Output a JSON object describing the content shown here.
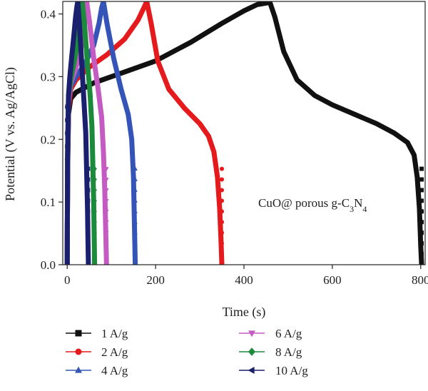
{
  "chart_data": {
    "type": "line",
    "xlabel": "Time (s)",
    "ylabel": "Potential (V vs. Ag/AgCl)",
    "xlim": [
      -10,
      810
    ],
    "ylim": [
      0,
      0.42
    ],
    "xticks": [
      0,
      200,
      400,
      600,
      800
    ],
    "yticks": [
      0.0,
      0.1,
      0.2,
      0.3,
      0.4
    ],
    "xtick_labels": [
      "0",
      "200",
      "400",
      "600",
      "800"
    ],
    "ytick_labels": [
      "0.0",
      "0.1",
      "0.2",
      "0.3",
      "0.4"
    ],
    "annotation": {
      "prefix": "CuO@ porous g-C",
      "sub1": "3",
      "mid": "N",
      "sub2": "4"
    },
    "legend_position": "bottom",
    "series": [
      {
        "name": "1 A/g",
        "color": "#111111",
        "marker": "square",
        "x": [
          0,
          1,
          3,
          8,
          20,
          60,
          120,
          200,
          280,
          350,
          400,
          430,
          455,
          458,
          470,
          490,
          520,
          560,
          600,
          650,
          700,
          740,
          770,
          785,
          792,
          797,
          800,
          802
        ],
        "y": [
          0.0,
          0.15,
          0.24,
          0.265,
          0.275,
          0.29,
          0.305,
          0.325,
          0.355,
          0.385,
          0.405,
          0.415,
          0.418,
          0.42,
          0.395,
          0.34,
          0.295,
          0.27,
          0.255,
          0.24,
          0.225,
          0.21,
          0.195,
          0.175,
          0.14,
          0.09,
          0.03,
          0.0
        ]
      },
      {
        "name": "2 A/g",
        "color": "#e41a1c",
        "marker": "circle",
        "x": [
          0,
          1,
          3,
          8,
          20,
          50,
          90,
          130,
          160,
          175,
          180,
          190,
          205,
          230,
          265,
          300,
          320,
          332,
          340,
          345,
          348,
          350
        ],
        "y": [
          0.0,
          0.16,
          0.25,
          0.28,
          0.295,
          0.315,
          0.335,
          0.36,
          0.39,
          0.412,
          0.42,
          0.385,
          0.325,
          0.28,
          0.25,
          0.225,
          0.205,
          0.18,
          0.14,
          0.09,
          0.04,
          0.0
        ]
      },
      {
        "name": "4 A/g",
        "color": "#3455b7",
        "marker": "triangle-up",
        "x": [
          0,
          1,
          3,
          8,
          20,
          40,
          60,
          72,
          78,
          82,
          90,
          105,
          122,
          138,
          146,
          150,
          152,
          154
        ],
        "y": [
          0.0,
          0.17,
          0.26,
          0.285,
          0.3,
          0.32,
          0.35,
          0.385,
          0.41,
          0.42,
          0.385,
          0.33,
          0.28,
          0.24,
          0.2,
          0.14,
          0.07,
          0.0
        ]
      },
      {
        "name": "6 A/g",
        "color": "#c35bc3",
        "marker": "triangle-down",
        "x": [
          0,
          1,
          3,
          8,
          18,
          30,
          38,
          42,
          44,
          50,
          60,
          70,
          78,
          82,
          85,
          87,
          89
        ],
        "y": [
          0.0,
          0.17,
          0.26,
          0.29,
          0.31,
          0.34,
          0.375,
          0.405,
          0.42,
          0.39,
          0.33,
          0.28,
          0.235,
          0.18,
          0.12,
          0.06,
          0.0
        ]
      },
      {
        "name": "8 A/g",
        "color": "#1c8a3b",
        "marker": "diamond",
        "x": [
          0,
          1,
          3,
          8,
          15,
          22,
          28,
          32,
          34,
          39,
          46,
          52,
          56,
          58,
          60,
          61,
          62
        ],
        "y": [
          0.0,
          0.18,
          0.27,
          0.295,
          0.32,
          0.35,
          0.385,
          0.41,
          0.42,
          0.385,
          0.32,
          0.27,
          0.22,
          0.16,
          0.1,
          0.05,
          0.0
        ]
      },
      {
        "name": "10 A/g",
        "color": "#1a1f6e",
        "marker": "triangle-left",
        "x": [
          0,
          1,
          3,
          6,
          10,
          15,
          19,
          22,
          24,
          28,
          33,
          38,
          42,
          44,
          46,
          47,
          48
        ],
        "y": [
          0.0,
          0.18,
          0.27,
          0.3,
          0.33,
          0.365,
          0.395,
          0.412,
          0.42,
          0.38,
          0.32,
          0.26,
          0.21,
          0.15,
          0.09,
          0.04,
          0.0
        ]
      }
    ]
  }
}
